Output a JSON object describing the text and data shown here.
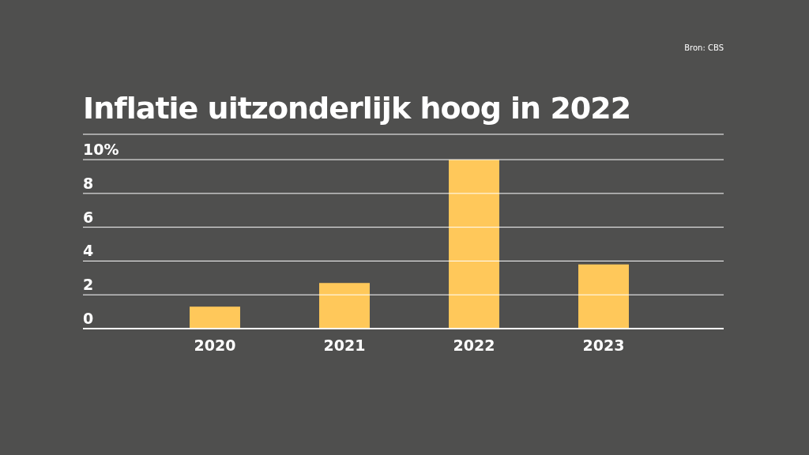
{
  "chart_data": {
    "type": "bar",
    "title": "Inflatie uitzonderlijk hoog in 2022",
    "annotations": [
      "Bron: CBS"
    ],
    "categories": [
      "2020",
      "2021",
      "2022",
      "2023"
    ],
    "values": [
      1.3,
      2.7,
      10.0,
      3.8
    ],
    "color": "#ffc85a",
    "ylim": [
      0,
      11.5
    ],
    "yticks": [
      0,
      2,
      4,
      6,
      8,
      {
        "value": 10,
        "label": "10%"
      }
    ],
    "grid": "y"
  }
}
